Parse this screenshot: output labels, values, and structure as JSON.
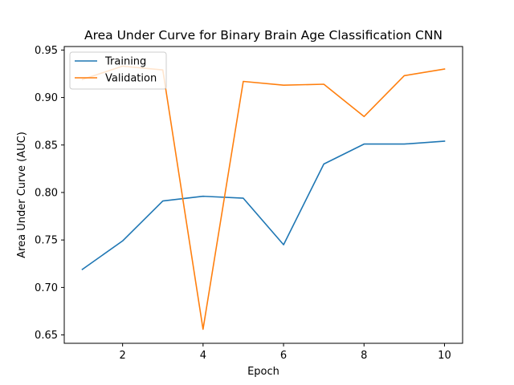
{
  "chart_data": {
    "type": "line",
    "title": "Area Under Curve for Binary Brain Age Classification CNN",
    "xlabel": "Epoch",
    "ylabel": "Area Under Curve (AUC)",
    "x": [
      1,
      2,
      3,
      4,
      5,
      6,
      7,
      8,
      9,
      10
    ],
    "xlim": [
      0.55,
      10.45
    ],
    "ylim": [
      0.6412,
      0.9537
    ],
    "xticks": [
      2,
      4,
      6,
      8,
      10
    ],
    "xtick_labels": [
      "2",
      "4",
      "6",
      "8",
      "10"
    ],
    "yticks": [
      0.65,
      0.7,
      0.75,
      0.8,
      0.85,
      0.9,
      0.95
    ],
    "ytick_labels": [
      "0.65",
      "0.70",
      "0.75",
      "0.80",
      "0.85",
      "0.90",
      "0.95"
    ],
    "grid": false,
    "legend_position": "upper-left",
    "series": [
      {
        "name": "Training",
        "color": "#1f77b4",
        "values": [
          0.719,
          0.749,
          0.791,
          0.796,
          0.794,
          0.745,
          0.83,
          0.851,
          0.851,
          0.854
        ]
      },
      {
        "name": "Validation",
        "color": "#ff7f0e",
        "values": [
          0.919,
          0.933,
          0.929,
          0.656,
          0.917,
          0.913,
          0.914,
          0.88,
          0.923,
          0.93
        ]
      }
    ]
  }
}
